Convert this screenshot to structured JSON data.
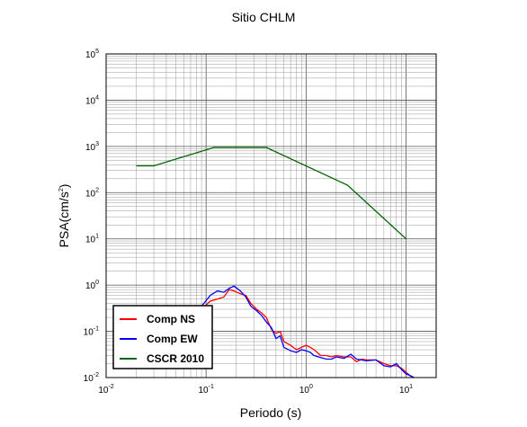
{
  "chart_data": {
    "type": "line",
    "title": "Sitio CHLM",
    "xlabel": "Periodo (s)",
    "ylabel_base": "PSA(cm/s",
    "ylabel_exp": "2",
    "ylabel_close": ")",
    "x_scale": "log",
    "y_scale": "log",
    "xlim": [
      0.01,
      20
    ],
    "ylim": [
      0.01,
      100000
    ],
    "grid": true,
    "legend_position": "bottom-left",
    "x_ticks": [
      {
        "value": 0.01,
        "base": "10",
        "exp": "-2"
      },
      {
        "value": 0.1,
        "base": "10",
        "exp": "-1"
      },
      {
        "value": 1,
        "base": "10",
        "exp": "0"
      },
      {
        "value": 10,
        "base": "10",
        "exp": "1"
      }
    ],
    "y_ticks": [
      {
        "value": 0.01,
        "base": "10",
        "exp": "-2"
      },
      {
        "value": 0.1,
        "base": "10",
        "exp": "-1"
      },
      {
        "value": 1,
        "base": "10",
        "exp": "0"
      },
      {
        "value": 10,
        "base": "10",
        "exp": "1"
      },
      {
        "value": 100,
        "base": "10",
        "exp": "2"
      },
      {
        "value": 1000,
        "base": "10",
        "exp": "3"
      },
      {
        "value": 10000,
        "base": "10",
        "exp": "4"
      },
      {
        "value": 100000,
        "base": "10",
        "exp": "5"
      }
    ],
    "series": [
      {
        "name": "Comp NS",
        "color": "#ff0000",
        "x": [
          0.035,
          0.05,
          0.07,
          0.09,
          0.11,
          0.13,
          0.15,
          0.17,
          0.19,
          0.22,
          0.25,
          0.28,
          0.32,
          0.36,
          0.4,
          0.45,
          0.5,
          0.55,
          0.6,
          0.7,
          0.8,
          0.9,
          1.0,
          1.1,
          1.2,
          1.4,
          1.6,
          1.8,
          2.0,
          2.4,
          2.8,
          3.2,
          3.6,
          4.0,
          5.0,
          6.0,
          7.0,
          8.0,
          9.0,
          10.0,
          11.0,
          12.0
        ],
        "y": [
          0.03,
          0.06,
          0.15,
          0.3,
          0.45,
          0.5,
          0.55,
          0.8,
          0.75,
          0.65,
          0.6,
          0.4,
          0.3,
          0.25,
          0.2,
          0.11,
          0.09,
          0.1,
          0.06,
          0.05,
          0.04,
          0.045,
          0.05,
          0.045,
          0.04,
          0.03,
          0.03,
          0.028,
          0.03,
          0.028,
          0.028,
          0.022,
          0.025,
          0.024,
          0.024,
          0.02,
          0.018,
          0.018,
          0.016,
          0.013,
          0.011,
          0.01
        ]
      },
      {
        "name": "Comp EW",
        "color": "#0000ff",
        "x": [
          0.035,
          0.05,
          0.07,
          0.09,
          0.11,
          0.13,
          0.15,
          0.17,
          0.19,
          0.22,
          0.25,
          0.28,
          0.32,
          0.36,
          0.4,
          0.45,
          0.5,
          0.55,
          0.6,
          0.7,
          0.8,
          0.9,
          1.0,
          1.1,
          1.2,
          1.4,
          1.6,
          1.8,
          2.0,
          2.4,
          2.8,
          3.2,
          3.6,
          4.0,
          5.0,
          6.0,
          7.0,
          8.0,
          9.0,
          10.0,
          11.0,
          12.0
        ],
        "y": [
          0.03,
          0.07,
          0.17,
          0.35,
          0.6,
          0.75,
          0.7,
          0.85,
          0.95,
          0.75,
          0.55,
          0.35,
          0.28,
          0.22,
          0.16,
          0.12,
          0.07,
          0.08,
          0.045,
          0.038,
          0.035,
          0.04,
          0.038,
          0.035,
          0.03,
          0.027,
          0.025,
          0.025,
          0.028,
          0.026,
          0.032,
          0.025,
          0.024,
          0.023,
          0.024,
          0.018,
          0.017,
          0.02,
          0.015,
          0.012,
          0.011,
          0.01
        ]
      },
      {
        "name": "CSCR 2010",
        "color": "#006400",
        "x": [
          0.02,
          0.03,
          0.12,
          0.4,
          2.6,
          10.0
        ],
        "y": [
          380,
          380,
          950,
          950,
          145,
          10
        ]
      }
    ]
  }
}
